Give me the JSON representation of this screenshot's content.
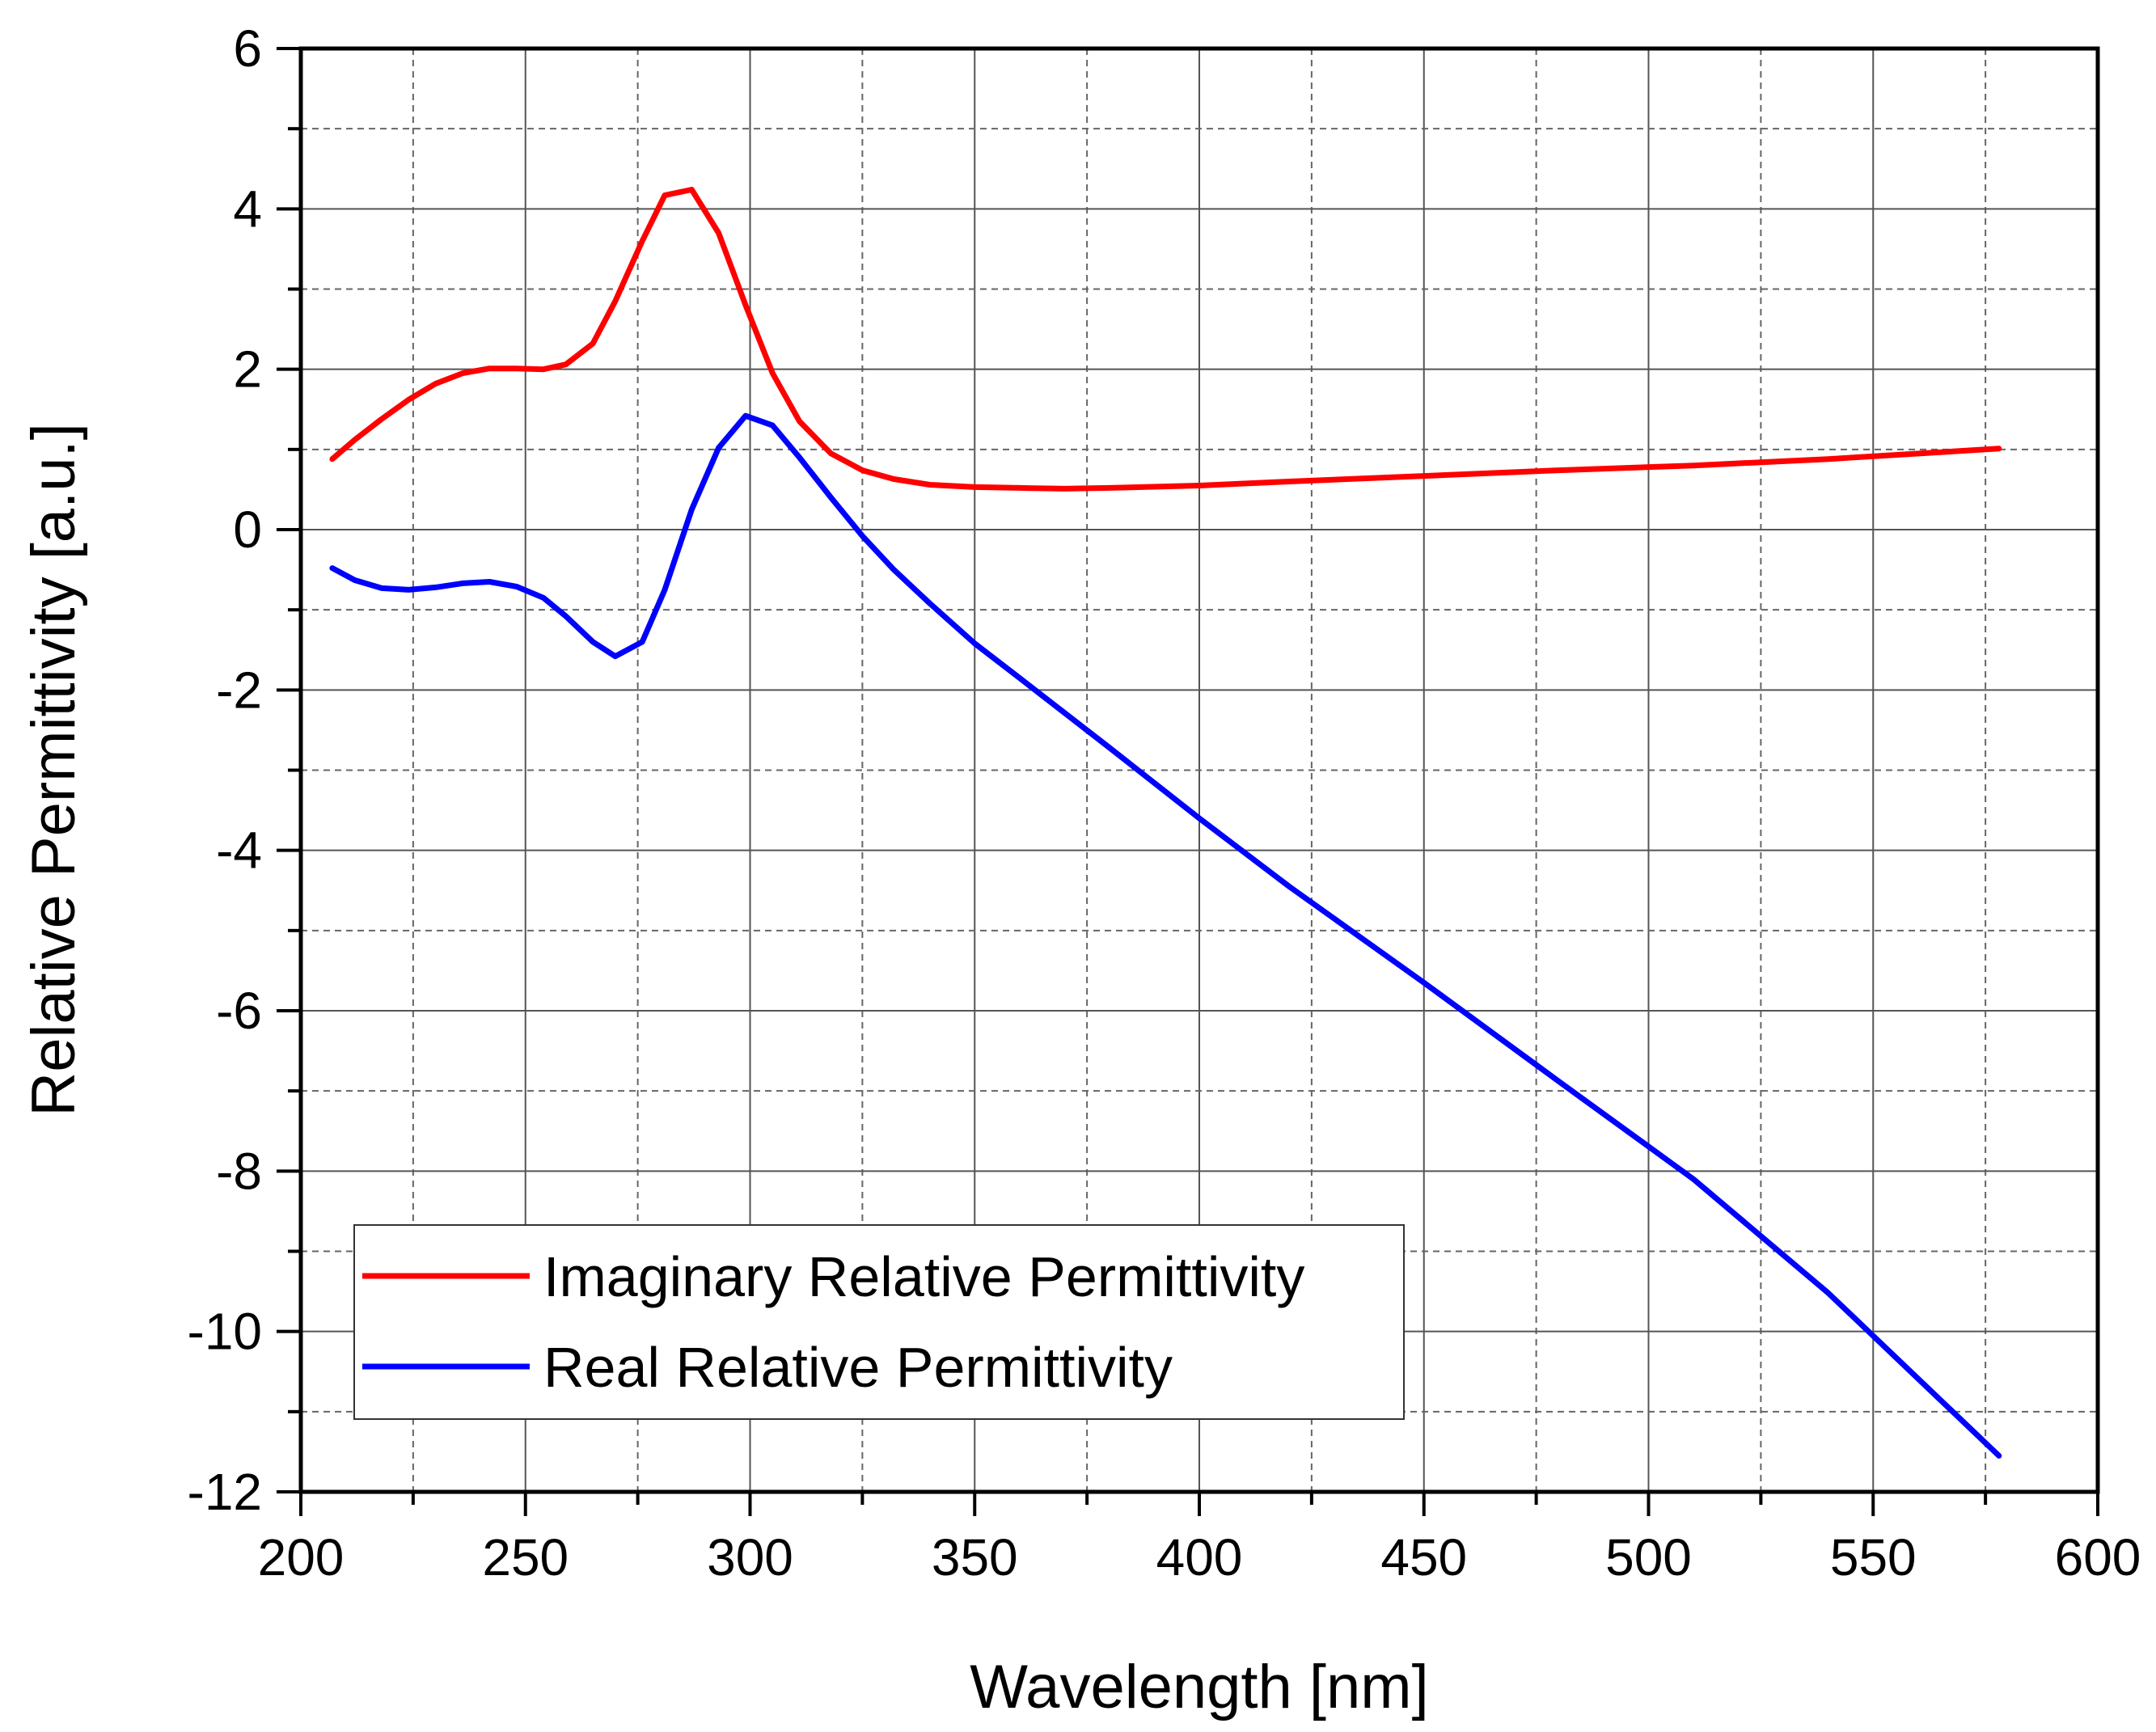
{
  "chart_data": {
    "type": "line",
    "title": "",
    "xlabel": "Wavelength [nm]",
    "ylabel": "Relative Permittivity [a.u.]",
    "xlim": [
      200,
      600
    ],
    "ylim": [
      -12,
      6
    ],
    "xticks": [
      200,
      250,
      300,
      350,
      400,
      450,
      500,
      550,
      600
    ],
    "yticks": [
      -12,
      -10,
      -8,
      -6,
      -4,
      -2,
      0,
      2,
      4,
      6
    ],
    "grid": true,
    "legend_position": "bottom-left",
    "series": [
      {
        "name": "Imaginary Relative Permittivity",
        "color": "#ff0000",
        "x": [
          207,
          212,
          218,
          224,
          230,
          236,
          242,
          248,
          254,
          259,
          265,
          270,
          276,
          281,
          287,
          293,
          299,
          305,
          311,
          318,
          325,
          332,
          340,
          350,
          360,
          370,
          380,
          400,
          420,
          450,
          480,
          510,
          540,
          578
        ],
        "y": [
          0.88,
          1.12,
          1.38,
          1.62,
          1.82,
          1.95,
          2.01,
          2.01,
          2.0,
          2.06,
          2.32,
          2.85,
          3.6,
          4.17,
          4.24,
          3.7,
          2.8,
          1.95,
          1.35,
          0.95,
          0.74,
          0.63,
          0.56,
          0.53,
          0.52,
          0.51,
          0.52,
          0.55,
          0.6,
          0.67,
          0.74,
          0.8,
          0.88,
          1.01
        ]
      },
      {
        "name": "Real Relative Permittivity",
        "color": "#0000ff",
        "x": [
          207,
          212,
          218,
          224,
          230,
          236,
          242,
          248,
          254,
          259,
          265,
          270,
          276,
          281,
          287,
          293,
          299,
          305,
          311,
          318,
          325,
          332,
          340,
          350,
          360,
          380,
          400,
          420,
          450,
          480,
          510,
          540,
          578
        ],
        "y": [
          -0.48,
          -0.63,
          -0.73,
          -0.75,
          -0.72,
          -0.67,
          -0.65,
          -0.71,
          -0.85,
          -1.08,
          -1.4,
          -1.58,
          -1.4,
          -0.75,
          0.25,
          1.02,
          1.42,
          1.3,
          0.9,
          0.4,
          -0.08,
          -0.5,
          -0.92,
          -1.42,
          -1.85,
          -2.72,
          -3.6,
          -4.45,
          -5.65,
          -6.88,
          -8.1,
          -9.52,
          -11.55
        ]
      }
    ]
  }
}
